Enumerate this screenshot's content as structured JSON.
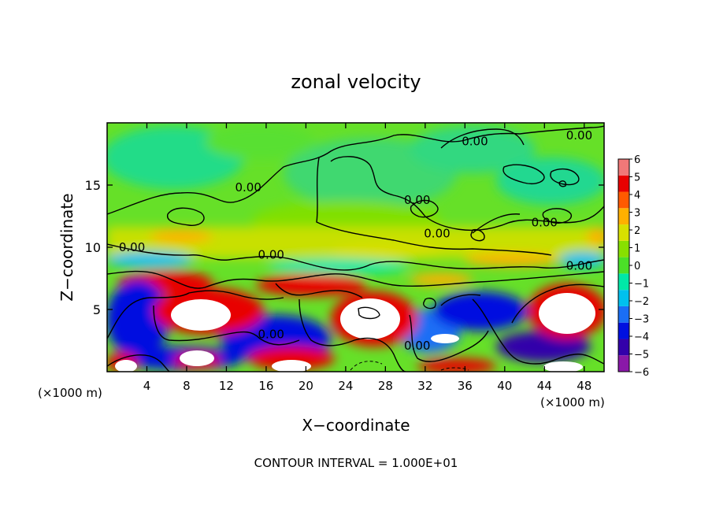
{
  "chart_data": {
    "type": "heatmap",
    "title": "zonal velocity",
    "xlabel": "X−coordinate",
    "ylabel": "Z−coordinate",
    "x_unit_left": "(×1000 m)",
    "x_unit_right": "(×1000 m)",
    "footer": "CONTOUR INTERVAL = 1.000E+01",
    "xlim": [
      0,
      50
    ],
    "ylim": [
      0,
      20
    ],
    "x_ticks": [
      4,
      8,
      12,
      16,
      20,
      24,
      28,
      32,
      36,
      40,
      44,
      48
    ],
    "y_ticks": [
      5,
      10,
      15
    ],
    "colorbar": {
      "min": -6,
      "max": 6,
      "labels": [
        6,
        5,
        4,
        3,
        2,
        1,
        0,
        -1,
        -2,
        -3,
        -4,
        -5,
        -6
      ],
      "colors": [
        "#8a18a8",
        "#3300aa",
        "#0010e0",
        "#1a6ef5",
        "#00c0ee",
        "#00e8a8",
        "#4be028",
        "#88e000",
        "#d8e000",
        "#ffb000",
        "#ff5a00",
        "#e80000",
        "#f07878"
      ]
    },
    "contour_label": "0.00",
    "contour_label_points": [
      {
        "x": 2.5,
        "y": 10.0
      },
      {
        "x": 16.5,
        "y": 9.4
      },
      {
        "x": 14.2,
        "y": 14.8
      },
      {
        "x": 37.0,
        "y": 18.5
      },
      {
        "x": 31.2,
        "y": 13.8
      },
      {
        "x": 33.2,
        "y": 11.1
      },
      {
        "x": 44.0,
        "y": 12.0
      },
      {
        "x": 47.5,
        "y": 8.5
      },
      {
        "x": 16.5,
        "y": 3.0
      },
      {
        "x": 31.2,
        "y": 2.1
      },
      {
        "x": 47.5,
        "y": 19.0
      }
    ]
  }
}
